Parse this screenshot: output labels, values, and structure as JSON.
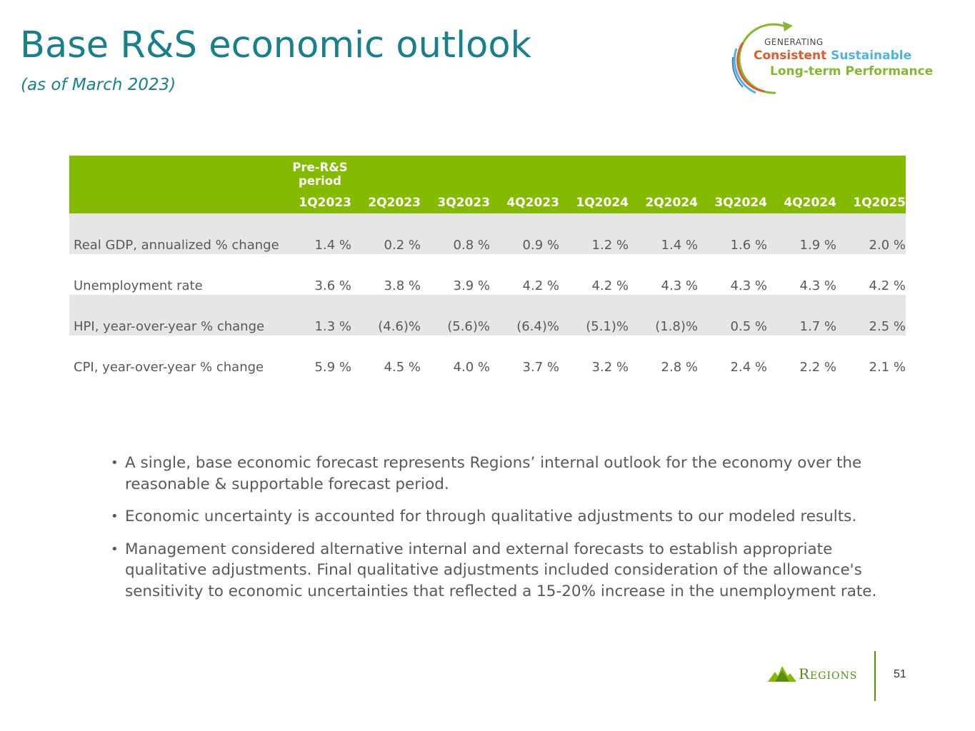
{
  "title": "Base R&S economic outlook",
  "subtitle": "(as of March 2023)",
  "logo": {
    "line1": "GENERATING",
    "consistent": "Consistent",
    "sustainable": "Sustainable",
    "line3": "Long-term Performance"
  },
  "table": {
    "pre_label": "Pre-R&S period",
    "periods": [
      "1Q2023",
      "2Q2023",
      "3Q2023",
      "4Q2023",
      "1Q2024",
      "2Q2024",
      "3Q2024",
      "4Q2024",
      "1Q2025"
    ],
    "rows": [
      {
        "label": "Real GDP, annualized % change",
        "values": [
          "1.4 %",
          "0.2 %",
          "0.8 %",
          "0.9 %",
          "1.2 %",
          "1.4 %",
          "1.6 %",
          "1.9 %",
          "2.0 %"
        ]
      },
      {
        "label": "Unemployment rate",
        "values": [
          "3.6 %",
          "3.8 %",
          "3.9 %",
          "4.2 %",
          "4.2 %",
          "4.3 %",
          "4.3 %",
          "4.3 %",
          "4.2 %"
        ]
      },
      {
        "label": "HPI, year-over-year % change",
        "values": [
          "1.3 %",
          "(4.6)%",
          "(5.6)%",
          "(6.4)%",
          "(5.1)%",
          "(1.8)%",
          "0.5 %",
          "1.7 %",
          "2.5 %"
        ]
      },
      {
        "label": "CPI, year-over-year % change",
        "values": [
          "5.9 %",
          "4.5 %",
          "4.0 %",
          "3.7 %",
          "3.2 %",
          "2.8 %",
          "2.4 %",
          "2.2 %",
          "2.1 %"
        ]
      }
    ]
  },
  "bullets": [
    "A single, base economic forecast represents Regions’ internal outlook for the economy over the reasonable & supportable forecast period.",
    "Economic uncertainty is accounted for through qualitative adjustments to our modeled results.",
    "Management considered alternative internal and external forecasts to establish appropriate qualitative adjustments. Final qualitative adjustments included consideration of the allowance's sensitivity to economic uncertainties that reflected a 15-20% increase in the unemployment rate."
  ],
  "footer": {
    "brand": "Regions",
    "page_number": "51"
  },
  "colors": {
    "title": "#17808c",
    "header_green": "#84ba00",
    "row_shade": "#e6e6e6",
    "brand_green": "#5b8c12"
  }
}
